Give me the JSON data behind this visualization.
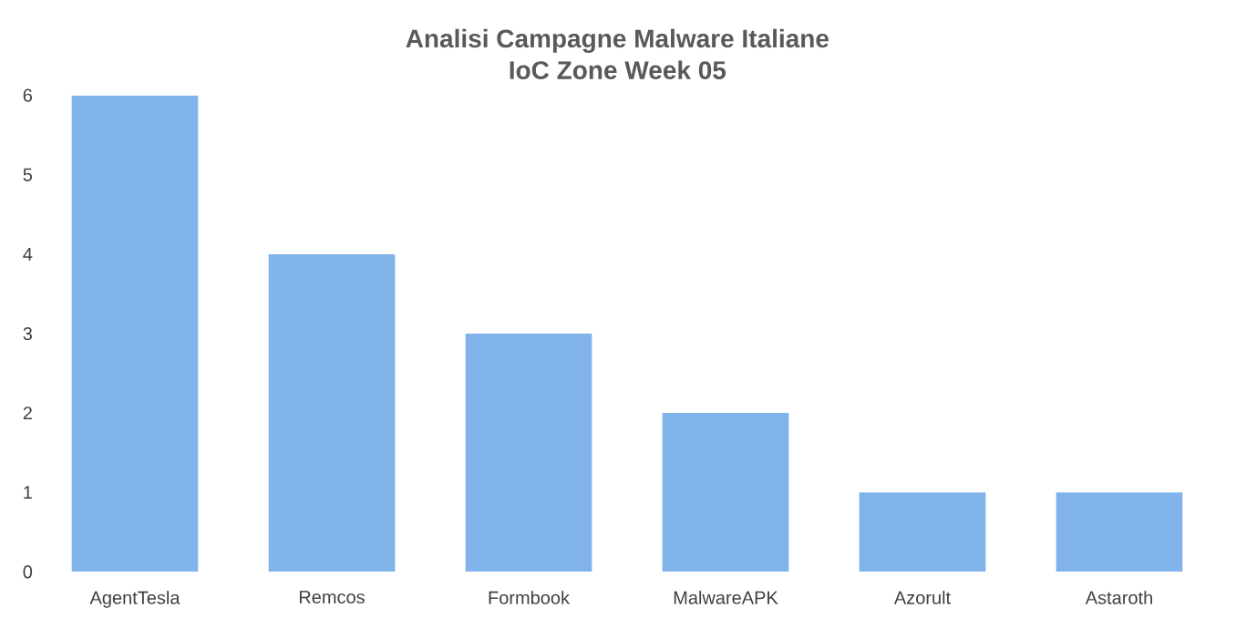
{
  "chart_data": {
    "type": "bar",
    "title": "Analisi Campagne Malware Italiane\nIoC Zone Week 05",
    "categories": [
      "AgentTesla",
      "Remcos",
      "Formbook",
      "MalwareAPK",
      "Azorult",
      "Astaroth"
    ],
    "values": [
      6,
      4,
      3,
      2,
      1,
      1
    ],
    "color": "#7fb3ea",
    "ylim": [
      0,
      6
    ],
    "yticks": [
      0,
      1,
      2,
      3,
      4,
      5,
      6
    ],
    "grid": false
  }
}
